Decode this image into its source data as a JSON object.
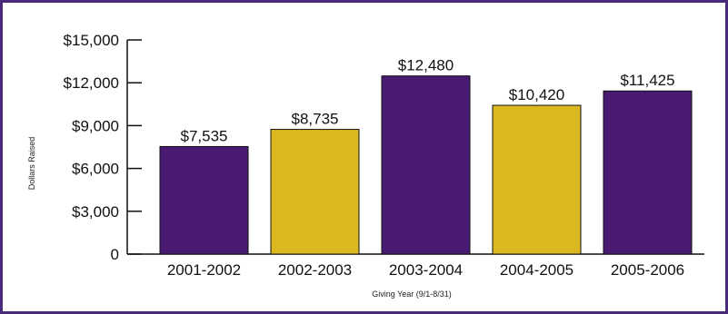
{
  "chart_data": {
    "type": "bar",
    "title": "",
    "xlabel": "Giving Year (9/1-8/31)",
    "ylabel": "Dollars Raised",
    "categories": [
      "2001-2002",
      "2002-2003",
      "2003-2004",
      "2004-2005",
      "2005-2006"
    ],
    "values": [
      7535,
      8735,
      12480,
      10420,
      11425
    ],
    "data_labels": [
      "$7,535",
      "$8,735",
      "$12,480",
      "$10,420",
      "$11,425"
    ],
    "bar_colors": [
      "#4a1a72",
      "#dcb820",
      "#4a1a72",
      "#dcb820",
      "#4a1a72"
    ],
    "ylim": [
      0,
      15000
    ],
    "yticks": [
      0,
      3000,
      6000,
      9000,
      12000,
      15000
    ],
    "ytick_labels": [
      "0",
      "$3,000",
      "$6,000",
      "$9,000",
      "$12,000",
      "$15,000"
    ],
    "grid": false,
    "legend": "none",
    "frame_color": "#4a2a7a"
  }
}
